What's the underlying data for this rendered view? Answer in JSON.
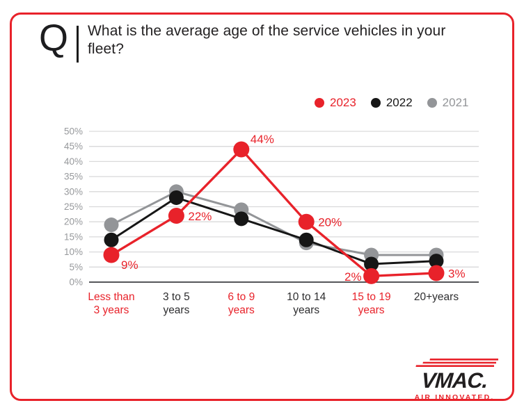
{
  "header": {
    "q_mark": "Q",
    "title": "What is the average age of the service vehicles in your fleet?"
  },
  "legend": [
    {
      "label": "2023",
      "color": "#e8222a"
    },
    {
      "label": "2022",
      "color": "#161616"
    },
    {
      "label": "2021",
      "color": "#939598"
    }
  ],
  "chart_data": {
    "type": "line",
    "title": "What is the average age of the service vehicles in your fleet?",
    "categories": [
      [
        "Less than",
        "3 years"
      ],
      [
        "3 to 5",
        "years"
      ],
      [
        "6 to 9",
        "years"
      ],
      [
        "10 to 14",
        "years"
      ],
      [
        "15 to 19",
        "years"
      ],
      [
        "20+years"
      ]
    ],
    "category_colors": [
      "#e8222a",
      "#2d2d2f",
      "#e8222a",
      "#2d2d2f",
      "#e8222a",
      "#2d2d2f"
    ],
    "series": [
      {
        "name": "2023",
        "color": "#e8222a",
        "values": [
          9,
          22,
          44,
          20,
          2,
          3
        ],
        "labels": [
          "9%",
          "22%",
          "44%",
          "20%",
          "2%",
          "3%"
        ],
        "label_placement": [
          "below-right",
          "right",
          "above-right",
          "right",
          "left",
          "right"
        ]
      },
      {
        "name": "2022",
        "color": "#161616",
        "values": [
          14,
          28,
          21,
          14,
          6,
          7
        ]
      },
      {
        "name": "2021",
        "color": "#939598",
        "values": [
          19,
          30,
          24,
          13,
          9,
          9
        ]
      }
    ],
    "xlabel": "",
    "ylabel": "",
    "ylim": [
      0,
      50
    ],
    "ytick_step": 5,
    "ytick_suffix": "%",
    "grid": true,
    "legend_position": "top-right",
    "axis_line_color": "#55565a",
    "gridline_color": "#d9d9da"
  },
  "footer": {
    "logo_text": "VMAC.",
    "logo_tagline": "AIR INNOVATED."
  },
  "colors": {
    "accent_red": "#e8222a",
    "series_black": "#161616",
    "series_gray": "#939598",
    "border_red": "#e8222a"
  }
}
